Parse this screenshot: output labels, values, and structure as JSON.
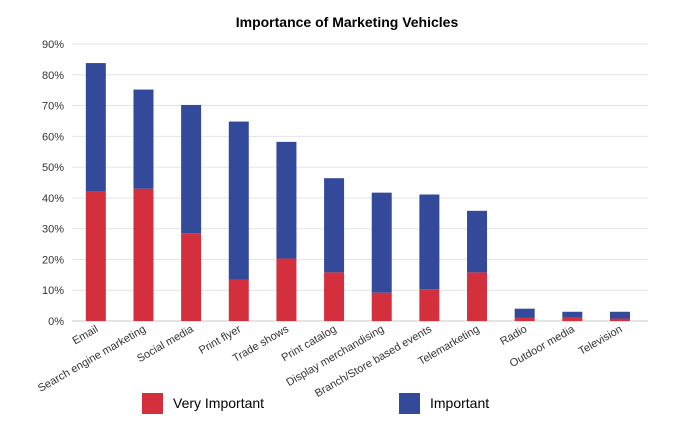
{
  "chart_data": {
    "type": "bar",
    "stacked": true,
    "title": "Importance of Marketing Vehicles",
    "xlabel": "",
    "ylabel": "",
    "categories": [
      "Email",
      "Search engine marketing",
      "Social media",
      "Print flyer",
      "Trade shows",
      "Print catalog",
      "Display merchandising",
      "Branch/Store based events",
      "Telemarketing",
      "Radio",
      "Outdoor media",
      "Television"
    ],
    "series": [
      {
        "name": "Very Important",
        "color": "#d32f3c",
        "values": [
          42,
          43,
          28.5,
          13.5,
          20.3,
          15.8,
          9.2,
          10.3,
          15.8,
          1.0,
          1.3,
          0.8
        ]
      },
      {
        "name": "Important",
        "color": "#334a9b",
        "values": [
          41.8,
          32.2,
          41.7,
          51.3,
          37.9,
          30.6,
          32.5,
          30.8,
          20.0,
          3.0,
          1.7,
          2.2
        ]
      }
    ],
    "ylim": [
      0,
      90
    ],
    "yticks": [
      "0%",
      "10%",
      "20%",
      "30%",
      "40%",
      "50%",
      "60%",
      "70%",
      "80%",
      "90%"
    ],
    "grid": true,
    "legend_position": "bottom"
  }
}
